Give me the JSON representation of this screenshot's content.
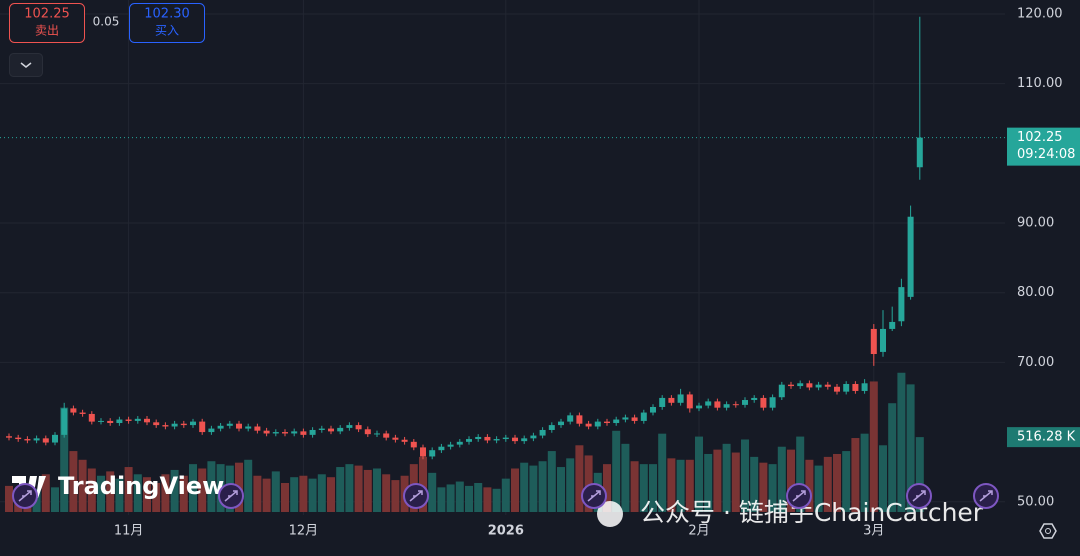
{
  "trade_panel": {
    "sell_price": 102.25,
    "sell_label": "卖出",
    "spread": 0.05,
    "buy_price": {
      "value": 102.3,
      "label": "102.30"
    },
    "buy_label": "买入"
  },
  "watermark": {
    "brand": "TradingView",
    "source": "公众号 · 链捕手ChainCatcher"
  },
  "chart_data": {
    "type": "candlestick",
    "open": [
      59.4,
      59.2,
      59.0,
      58.8,
      59.1,
      58.5,
      59.6,
      63.4,
      62.8,
      62.6,
      61.5,
      61.6,
      61.3,
      61.8,
      61.6,
      61.9,
      61.4,
      61.0,
      60.8,
      61.2,
      61.0,
      61.5,
      60.0,
      60.5,
      60.9,
      61.2,
      60.5,
      60.8,
      60.2,
      59.8,
      60.0,
      59.8,
      60.1,
      59.6,
      60.3,
      60.5,
      60.1,
      60.6,
      61.0,
      60.4,
      59.7,
      59.8,
      59.2,
      58.9,
      58.6,
      57.8,
      56.5,
      57.4,
      57.9,
      58.2,
      58.6,
      59.0,
      59.3,
      58.8,
      59.0,
      59.2,
      58.7,
      59.1,
      59.5,
      60.3,
      61.0,
      61.5,
      62.4,
      61.2,
      60.8,
      61.5,
      61.3,
      61.8,
      62.1,
      61.6,
      62.8,
      63.6,
      64.9,
      64.2,
      65.4,
      63.4,
      63.8,
      64.4,
      63.5,
      64.0,
      63.9,
      64.6,
      64.9,
      63.5,
      65.0,
      66.8,
      66.6,
      67.0,
      66.4,
      66.8,
      66.5,
      65.8,
      66.9,
      65.9,
      74.8,
      71.5,
      74.8,
      75.9,
      79.4,
      98.0
    ],
    "high": [
      59.8,
      59.6,
      59.4,
      59.5,
      59.5,
      60.0,
      64.2,
      63.8,
      63.2,
      63.0,
      62.0,
      62.0,
      62.2,
      62.2,
      62.3,
      62.3,
      61.8,
      61.4,
      61.6,
      61.6,
      61.9,
      61.9,
      60.9,
      61.3,
      61.6,
      61.6,
      61.2,
      61.2,
      60.6,
      60.4,
      60.4,
      60.5,
      60.5,
      60.7,
      60.9,
      60.9,
      61.0,
      61.4,
      61.4,
      60.8,
      60.2,
      60.2,
      59.6,
      59.3,
      59.0,
      58.2,
      57.8,
      58.3,
      58.6,
      59.0,
      59.4,
      59.7,
      59.7,
      59.4,
      59.6,
      59.6,
      59.5,
      59.9,
      60.7,
      61.4,
      61.9,
      62.8,
      62.8,
      61.6,
      61.9,
      61.9,
      62.2,
      62.5,
      62.5,
      63.2,
      64.0,
      65.3,
      65.3,
      66.2,
      65.8,
      64.2,
      64.8,
      64.8,
      64.4,
      64.4,
      65.0,
      65.3,
      65.3,
      65.4,
      67.2,
      67.2,
      67.4,
      67.4,
      67.2,
      67.2,
      66.9,
      67.3,
      67.3,
      67.6,
      75.5,
      77.5,
      78.0,
      82.0,
      92.5,
      119.6
    ],
    "low": [
      58.8,
      58.6,
      58.4,
      58.4,
      58.1,
      58.1,
      59.2,
      62.4,
      62.2,
      61.1,
      61.1,
      60.9,
      60.9,
      61.2,
      61.2,
      61.0,
      60.6,
      60.4,
      60.4,
      60.6,
      60.6,
      59.6,
      59.6,
      60.1,
      60.5,
      60.1,
      60.1,
      59.8,
      59.4,
      59.4,
      59.4,
      59.4,
      59.2,
      59.2,
      59.9,
      59.7,
      59.7,
      60.2,
      60.0,
      59.3,
      59.3,
      58.8,
      58.5,
      58.2,
      57.4,
      56.1,
      56.1,
      57.0,
      57.5,
      57.8,
      58.2,
      58.6,
      58.4,
      58.4,
      58.6,
      58.3,
      58.3,
      58.7,
      59.1,
      59.9,
      60.6,
      61.1,
      60.8,
      60.4,
      60.4,
      60.9,
      60.9,
      61.4,
      61.2,
      61.2,
      62.4,
      63.2,
      63.8,
      63.8,
      62.8,
      63.0,
      63.4,
      63.1,
      63.1,
      63.5,
      63.5,
      64.2,
      63.1,
      63.1,
      64.6,
      66.2,
      66.2,
      66.0,
      66.0,
      66.1,
      65.4,
      65.4,
      65.5,
      65.5,
      69.5,
      70.8,
      74.5,
      75.2,
      79.0,
      96.2
    ],
    "close": [
      59.2,
      59.0,
      58.8,
      59.1,
      58.5,
      59.6,
      63.4,
      62.8,
      62.6,
      61.5,
      61.6,
      61.3,
      61.8,
      61.6,
      61.9,
      61.4,
      61.0,
      60.8,
      61.2,
      61.0,
      61.5,
      60.0,
      60.5,
      60.9,
      61.2,
      60.5,
      60.8,
      60.2,
      59.8,
      60.0,
      59.8,
      60.1,
      59.6,
      60.3,
      60.5,
      60.1,
      60.6,
      61.0,
      60.4,
      59.7,
      59.8,
      59.2,
      58.9,
      58.6,
      57.8,
      56.5,
      57.4,
      57.9,
      58.2,
      58.6,
      59.0,
      59.3,
      58.8,
      59.0,
      59.2,
      58.7,
      59.1,
      59.5,
      60.3,
      61.0,
      61.5,
      62.4,
      61.2,
      60.8,
      61.5,
      61.3,
      61.8,
      62.1,
      61.6,
      62.8,
      63.6,
      64.9,
      64.2,
      65.4,
      63.4,
      63.8,
      64.4,
      63.5,
      64.0,
      63.9,
      64.6,
      64.9,
      63.5,
      65.0,
      66.8,
      66.6,
      67.0,
      66.4,
      66.8,
      66.5,
      65.8,
      66.9,
      65.9,
      67.0,
      71.2,
      74.8,
      75.8,
      80.8,
      90.9,
      102.25
    ],
    "volume": [
      180,
      150,
      120,
      160,
      260,
      170,
      720,
      420,
      360,
      300,
      250,
      280,
      230,
      310,
      260,
      240,
      200,
      260,
      290,
      250,
      330,
      300,
      350,
      330,
      320,
      340,
      360,
      250,
      230,
      280,
      200,
      240,
      250,
      230,
      260,
      240,
      310,
      330,
      320,
      290,
      300,
      260,
      220,
      250,
      330,
      380,
      270,
      170,
      190,
      210,
      180,
      200,
      170,
      160,
      230,
      300,
      340,
      320,
      350,
      420,
      310,
      370,
      460,
      390,
      270,
      330,
      560,
      470,
      350,
      330,
      330,
      540,
      370,
      360,
      360,
      520,
      400,
      430,
      470,
      410,
      500,
      380,
      340,
      330,
      450,
      430,
      520,
      360,
      320,
      380,
      400,
      420,
      510,
      540,
      900,
      460,
      750,
      960,
      880,
      516.28
    ],
    "last_volume_label": "516.28 K",
    "last_time": "09:24:08",
    "xticks": [
      {
        "value": 13,
        "label": "11月"
      },
      {
        "value": 32,
        "label": "12月"
      },
      {
        "value": 54,
        "label": "2026"
      },
      {
        "value": 75,
        "label": "2月"
      },
      {
        "value": 94,
        "label": "3月"
      }
    ],
    "ylim": [
      48.1,
      122.0
    ],
    "yticks": [
      {
        "value": 120,
        "label": "120.00"
      },
      {
        "value": 110,
        "label": "110.00"
      },
      {
        "value": 90,
        "label": "90.00"
      },
      {
        "value": 80,
        "label": "80.00"
      },
      {
        "value": 70,
        "label": "70.00"
      },
      {
        "value": 50,
        "label": "50.00"
      }
    ],
    "volume_lim": [
      0,
      3530
    ],
    "up_color": "#26a69a",
    "down_color": "#ef5350",
    "up_volume_color": "#1e5d5a",
    "down_volume_color": "#7a3434",
    "grid": true
  }
}
